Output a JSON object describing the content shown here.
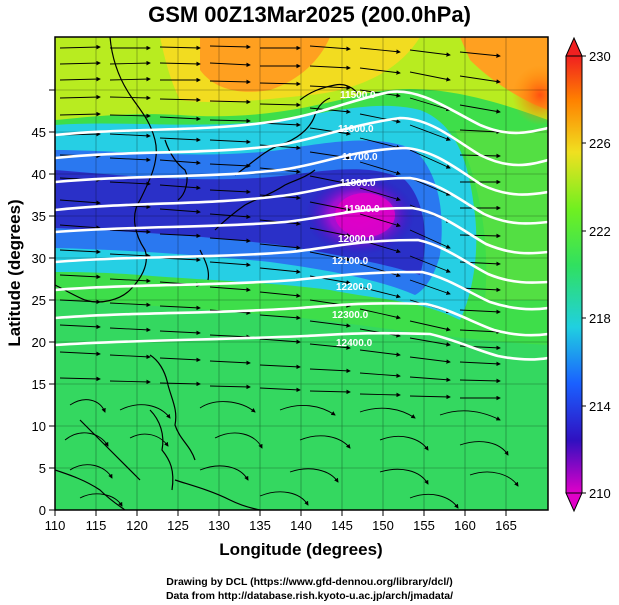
{
  "title": "GSM 00Z13Mar2025 (200.0hPa)",
  "axes": {
    "xlabel": "Longitude (degrees)",
    "ylabel": "Latitude  (degrees)",
    "x_ticks": [
      "110",
      "115",
      "120",
      "125",
      "130",
      "135",
      "140",
      "145",
      "150",
      "155",
      "160",
      "165"
    ],
    "y_ticks": [
      "0",
      "5",
      "10",
      "15",
      "20",
      "25",
      "30",
      "35",
      "40",
      "45"
    ]
  },
  "colorbar": {
    "labels": [
      "230",
      "226",
      "222",
      "218",
      "214",
      "210"
    ],
    "min": 210,
    "max": 230,
    "colors": [
      "#e000c8",
      "#3010c0",
      "#1a60ff",
      "#20d0e0",
      "#30e060",
      "#70f020",
      "#f0e020",
      "#ff8000",
      "#f02020"
    ]
  },
  "contours": [
    {
      "label": "11500.0"
    },
    {
      "label": "11600.0"
    },
    {
      "label": "11700.0"
    },
    {
      "label": "11800.0"
    },
    {
      "label": "11900.0"
    },
    {
      "label": "12000.0"
    },
    {
      "label": "12100.0"
    },
    {
      "label": "12200.0"
    },
    {
      "label": "12300.0"
    },
    {
      "label": "12400.0"
    }
  ],
  "credits": {
    "line1": "Drawing by DCL (https://www.gfd-dennou.org/library/dcl/)",
    "line2": "Data from http://database.rish.kyoto-u.ac.jp/arch/jmadata/"
  }
}
